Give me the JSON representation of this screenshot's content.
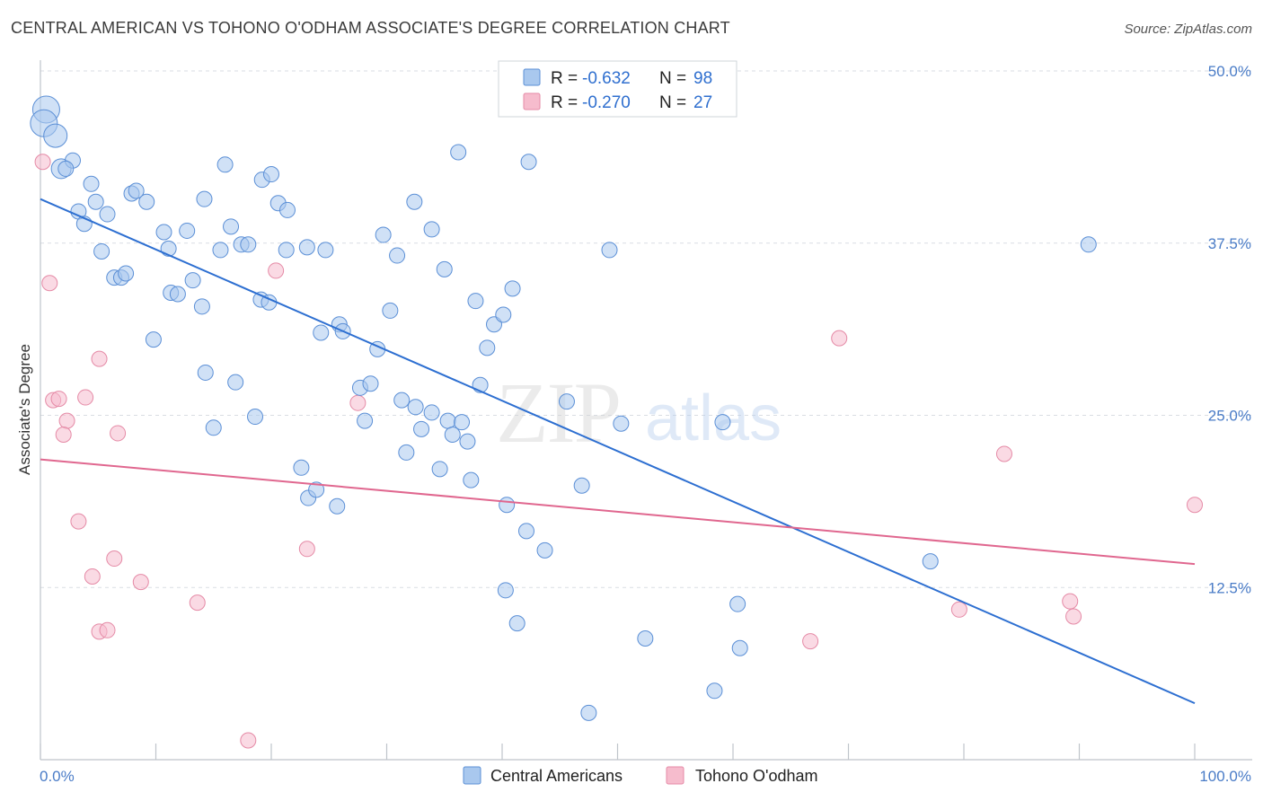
{
  "header": {
    "title": "CENTRAL AMERICAN VS TOHONO O'ODHAM ASSOCIATE'S DEGREE CORRELATION CHART",
    "source": "Source: ZipAtlas.com"
  },
  "legend_top": {
    "r_label": "R =",
    "n_label": "N =",
    "rows": [
      {
        "r": "-0.632",
        "n": "98"
      },
      {
        "r": "-0.270",
        "n": "27"
      }
    ]
  },
  "watermark": {
    "zip": "ZIP",
    "atlas": "atlas"
  },
  "colors": {
    "blue_fill": "#a9c8ee",
    "blue_stroke": "#5b8fd6",
    "blue_line": "#2d6fd1",
    "pink_fill": "#f6bccd",
    "pink_stroke": "#e58aa6",
    "pink_line": "#e0678f",
    "tick_text": "#4a7cc7",
    "grid": "#d9dde3"
  },
  "chart_data": {
    "type": "scatter",
    "xlabel": "",
    "ylabel": "Associate's Degree",
    "xlim": [
      0,
      100
    ],
    "ylim": [
      0,
      50
    ],
    "x_tick_labels": [
      "0.0%",
      "100.0%"
    ],
    "y_ticks": [
      12.5,
      25.0,
      37.5,
      50.0
    ],
    "y_tick_labels": [
      "12.5%",
      "25.0%",
      "37.5%",
      "50.0%"
    ],
    "grid": "horizontal dashed",
    "legend_position": "top-center and bottom",
    "series": [
      {
        "name": "Central Americans",
        "color": "blue",
        "r": -0.632,
        "n": 98,
        "trend": {
          "x": [
            0,
            100
          ],
          "y": [
            40.7,
            4.1
          ]
        },
        "points": [
          [
            0.5,
            47.2,
            3
          ],
          [
            0.3,
            46.2,
            3
          ],
          [
            1.3,
            45.3,
            2.5
          ],
          [
            1.8,
            42.9,
            2
          ],
          [
            2.8,
            43.5,
            1.5
          ],
          [
            2.2,
            42.9,
            1.5
          ],
          [
            4.4,
            41.8,
            1.5
          ],
          [
            3.3,
            39.8,
            1.5
          ],
          [
            3.8,
            38.9,
            1.5
          ],
          [
            4.8,
            40.5,
            1.5
          ],
          [
            5.8,
            39.6,
            1.5
          ],
          [
            7.9,
            41.1,
            1.5
          ],
          [
            9.2,
            40.5,
            1.5
          ],
          [
            8.3,
            41.3,
            1.5
          ],
          [
            10.7,
            38.3,
            1.5
          ],
          [
            12.7,
            38.4,
            1.5
          ],
          [
            11.1,
            37.1,
            1.5
          ],
          [
            14.2,
            40.7,
            1.5
          ],
          [
            15.6,
            37.0,
            1.5
          ],
          [
            16.0,
            43.2,
            1.5
          ],
          [
            16.5,
            38.7,
            1.5
          ],
          [
            17.4,
            37.4,
            1.5
          ],
          [
            18.0,
            37.4,
            1.5
          ],
          [
            19.2,
            42.1,
            1.5
          ],
          [
            20.0,
            42.5,
            1.5
          ],
          [
            20.6,
            40.4,
            1.5
          ],
          [
            21.4,
            39.9,
            1.5
          ],
          [
            21.3,
            37.0,
            1.5
          ],
          [
            23.1,
            37.2,
            1.5
          ],
          [
            24.7,
            37.0,
            1.5
          ],
          [
            5.3,
            36.9,
            1.5
          ],
          [
            6.4,
            35.0,
            1.5
          ],
          [
            7.0,
            35.0,
            1.5
          ],
          [
            7.4,
            35.3,
            1.5
          ],
          [
            11.3,
            33.9,
            1.5
          ],
          [
            11.9,
            33.8,
            1.5
          ],
          [
            13.2,
            34.8,
            1.5
          ],
          [
            14.0,
            32.9,
            1.5
          ],
          [
            9.8,
            30.5,
            1.5
          ],
          [
            19.1,
            33.4,
            1.5
          ],
          [
            19.8,
            33.2,
            1.5
          ],
          [
            24.3,
            31.0,
            1.5
          ],
          [
            25.9,
            31.6,
            1.5
          ],
          [
            26.2,
            31.1,
            1.5
          ],
          [
            27.7,
            27.0,
            1.5
          ],
          [
            28.6,
            27.3,
            1.5
          ],
          [
            28.1,
            24.6,
            1.5
          ],
          [
            29.2,
            29.8,
            1.5
          ],
          [
            14.3,
            28.1,
            1.5
          ],
          [
            16.9,
            27.4,
            1.5
          ],
          [
            15.0,
            24.1,
            1.5
          ],
          [
            18.6,
            24.9,
            1.5
          ],
          [
            22.6,
            21.2,
            1.5
          ],
          [
            23.2,
            19.0,
            1.5
          ],
          [
            23.9,
            19.6,
            1.5
          ],
          [
            25.7,
            18.4,
            1.5
          ],
          [
            30.3,
            32.6,
            1.5
          ],
          [
            30.9,
            36.6,
            1.5
          ],
          [
            29.7,
            38.1,
            1.5
          ],
          [
            31.3,
            26.1,
            1.5
          ],
          [
            31.7,
            22.3,
            1.5
          ],
          [
            32.5,
            25.6,
            1.5
          ],
          [
            33.0,
            24.0,
            1.5
          ],
          [
            33.9,
            25.2,
            1.5
          ],
          [
            32.4,
            40.5,
            1.5
          ],
          [
            33.9,
            38.5,
            1.5
          ],
          [
            35.0,
            35.6,
            1.5
          ],
          [
            35.3,
            24.6,
            1.5
          ],
          [
            35.7,
            23.6,
            1.5
          ],
          [
            36.5,
            24.5,
            1.5
          ],
          [
            37.0,
            23.1,
            1.5
          ],
          [
            36.2,
            44.1,
            1.5
          ],
          [
            34.6,
            21.1,
            1.5
          ],
          [
            37.3,
            20.3,
            1.5
          ],
          [
            37.7,
            33.3,
            1.5
          ],
          [
            38.1,
            27.2,
            1.5
          ],
          [
            38.7,
            29.9,
            1.5
          ],
          [
            39.3,
            31.6,
            1.5
          ],
          [
            40.1,
            32.3,
            1.5
          ],
          [
            40.9,
            34.2,
            1.5
          ],
          [
            42.3,
            43.4,
            1.5
          ],
          [
            40.4,
            18.5,
            1.5
          ],
          [
            40.3,
            12.3,
            1.5
          ],
          [
            42.1,
            16.6,
            1.5
          ],
          [
            43.7,
            15.2,
            1.5
          ],
          [
            41.3,
            9.9,
            1.5
          ],
          [
            45.6,
            26.0,
            1.5
          ],
          [
            46.9,
            19.9,
            1.5
          ],
          [
            47.5,
            3.4,
            1.5
          ],
          [
            49.3,
            37.0,
            1.5
          ],
          [
            50.3,
            24.4,
            1.5
          ],
          [
            52.4,
            8.8,
            1.5
          ],
          [
            58.4,
            5.0,
            1.5
          ],
          [
            59.1,
            24.5,
            1.5
          ],
          [
            60.4,
            11.3,
            1.5
          ],
          [
            60.6,
            8.1,
            1.5
          ],
          [
            77.1,
            14.4,
            1.5
          ],
          [
            90.8,
            37.4,
            1.5
          ]
        ]
      },
      {
        "name": "Tohono O'odham",
        "color": "pink",
        "r": -0.27,
        "n": 27,
        "trend": {
          "x": [
            0,
            100
          ],
          "y": [
            21.8,
            14.2
          ]
        },
        "points": [
          [
            0.2,
            43.4,
            1.5
          ],
          [
            0.8,
            34.6,
            1.5
          ],
          [
            1.1,
            26.1,
            1.5
          ],
          [
            1.6,
            26.2,
            1.5
          ],
          [
            2.3,
            24.6,
            1.5
          ],
          [
            2.0,
            23.6,
            1.5
          ],
          [
            3.9,
            26.3,
            1.5
          ],
          [
            5.1,
            29.1,
            1.5
          ],
          [
            6.7,
            23.7,
            1.5
          ],
          [
            3.3,
            17.3,
            1.5
          ],
          [
            4.5,
            13.3,
            1.5
          ],
          [
            6.4,
            14.6,
            1.5
          ],
          [
            8.7,
            12.9,
            1.5
          ],
          [
            5.1,
            9.3,
            1.5
          ],
          [
            5.8,
            9.4,
            1.5
          ],
          [
            13.6,
            11.4,
            1.5
          ],
          [
            18.0,
            1.4,
            1.5
          ],
          [
            20.4,
            35.5,
            1.5
          ],
          [
            23.1,
            15.3,
            1.5
          ],
          [
            27.5,
            25.9,
            1.5
          ],
          [
            66.7,
            8.6,
            1.5
          ],
          [
            69.2,
            30.6,
            1.5
          ],
          [
            79.6,
            10.9,
            1.5
          ],
          [
            83.5,
            22.2,
            1.5
          ],
          [
            89.2,
            11.5,
            1.5
          ],
          [
            89.5,
            10.4,
            1.5
          ],
          [
            100.0,
            18.5,
            1.5
          ]
        ]
      }
    ]
  },
  "bottom_legend": [
    "Central Americans",
    "Tohono O'odham"
  ]
}
